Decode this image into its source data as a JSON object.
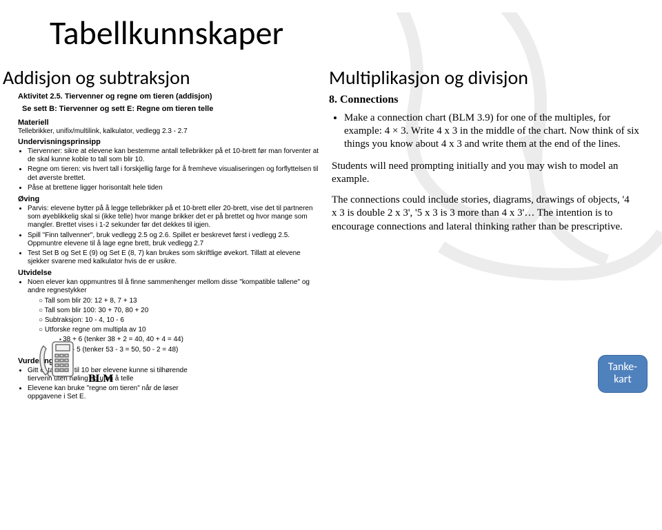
{
  "title": "Tabellkunnskaper",
  "left": {
    "subtitle": "Addisjon og subtraksjon",
    "activity": "Aktivitet 2.5. Tiervenner og regne om tieren (addisjon)",
    "sett": "Se sett B: Tiervenner og sett E: Regne om tieren telle",
    "materiell_h": "Materiell",
    "materiell": "Tellebrikker, unifix/multilink, kalkulator, vedlegg 2.3 - 2.7",
    "undervis_h": "Undervisningsprinsipp",
    "undervis": [
      "Tiervenner: sikre at elevene kan bestemme antall tellebrikker på et 10-brett før man forventer at de skal kunne koble to tall som blir 10.",
      "Regne om tieren: vis hvert tall i forskjellig farge for å fremheve visualiseringen og forflyttelsen til det øverste brettet.",
      "Påse at brettene ligger horisontalt hele tiden"
    ],
    "oving_h": "Øving",
    "oving": [
      "Parvis: elevene bytter på å legge tellebrikker på et 10-brett eller 20-brett, vise det til partneren som øyeblikkelig skal si (ikke telle) hvor mange brikker det er på brettet og hvor mange som mangler. Brettet vises i 1-2 sekunder før det dekkes til igjen.",
      "Spill \"Finn tallvenner\", bruk vedlegg 2.5 og 2.6. Spillet er beskrevet først i vedlegg 2.5. Oppmuntre elevene til å lage egne brett, bruk vedlegg 2.7",
      "Test Set B og Set E (9) og Set E (8, 7) kan brukes som skriftlige øvekort. Tillatt at elevene sjekker svarene med kalkulator hvis de er usikre."
    ],
    "utvidelse_h": "Utvidelse",
    "utvidelse_intro": "Noen elever kan oppmuntres til å finne sammenhenger mellom disse \"kompatible tallene\" og andre regnestykker",
    "utvidelse_sub": [
      "Tall som blir 20: 12 + 8, 7 + 13",
      "Tall som blir 100: 30 + 70, 80 + 20",
      "Subtraksjon: 10 - 4, 10 - 6",
      "Utforske regne om multipla av 10"
    ],
    "utvidelse_square": [
      "38 + 6 (tenker 38 + 2 = 40, 40 + 4 = 44)",
      "53 - 5 (tenker 53 - 3 = 50, 50 - 2 = 48)"
    ],
    "vurdering_h": "Vurdering",
    "vurdering": [
      "Gitt et tall fra 1 til 10 bør elevene kunne si tilhørende tiervenn uten nøling og uten å telle",
      "Elevene kan bruke \"regne om tieren\" når de løser oppgavene i Set E."
    ]
  },
  "right": {
    "subtitle": "Multiplikasjon og divisjon",
    "heading": "8.  Connections",
    "bullet1": "Make a connection chart (BLM 3.9) for one of the multiples, for example: 4 × 3. Write 4 x 3 in the middle of the chart. Now think of six things you know about 4 x 3 and write them at the end of the lines.",
    "para1": "Students will need prompting initially and you may wish to model an example.",
    "para2": "The connections could include stories, diagrams, drawings of objects, '4 x 3 is double 2 x 3', '5 x 3 is 3 more than 4 x 3'… The intention is to encourage connections and lateral thinking rather than be prescriptive."
  },
  "callout": "Tanke-\nkart",
  "blm": "BLM",
  "colors": {
    "callout_bg": "#4f81bd",
    "watermark": "#e6e6e6"
  }
}
